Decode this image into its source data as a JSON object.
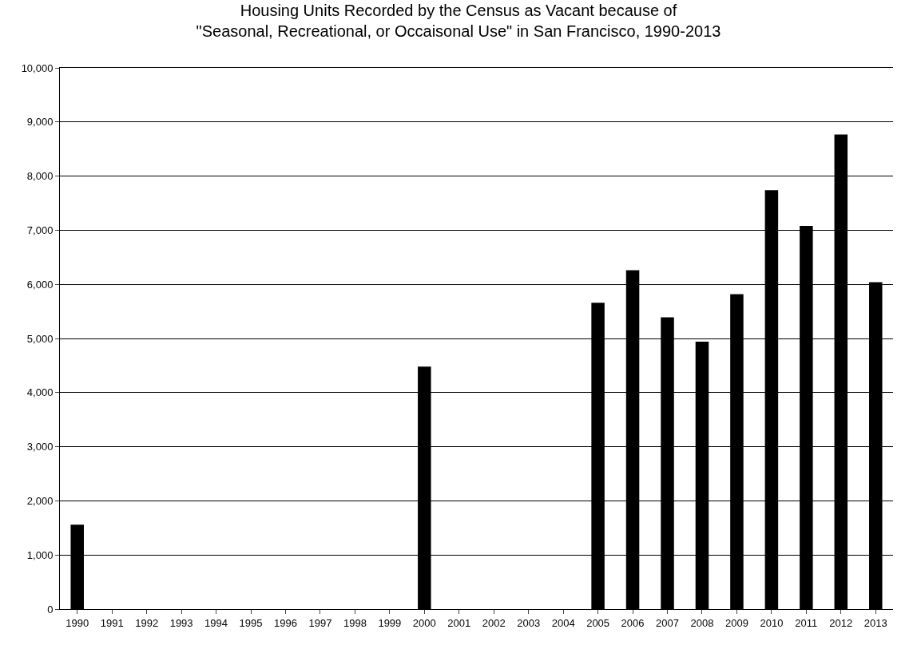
{
  "chart_data": {
    "type": "bar",
    "title": "Housing Units Recorded by the Census as Vacant because of\n\"Seasonal, Recreational, or Occaisonal Use\" in San Francisco, 1990-2013",
    "categories": [
      "1990",
      "1991",
      "1992",
      "1993",
      "1994",
      "1995",
      "1996",
      "1997",
      "1998",
      "1999",
      "2000",
      "2001",
      "2002",
      "2003",
      "2004",
      "2005",
      "2006",
      "2007",
      "2008",
      "2009",
      "2010",
      "2011",
      "2012",
      "2013"
    ],
    "values": [
      1560,
      null,
      null,
      null,
      null,
      null,
      null,
      null,
      null,
      null,
      4480,
      null,
      null,
      null,
      null,
      5660,
      6260,
      5390,
      4940,
      5820,
      7740,
      7080,
      8770,
      6040
    ],
    "color": "#000000",
    "ylim": [
      0,
      10000
    ],
    "yticks": [
      {
        "value": 0,
        "label": "0"
      },
      {
        "value": 1000,
        "label": "1,000"
      },
      {
        "value": 2000,
        "label": "2,000"
      },
      {
        "value": 3000,
        "label": "3,000"
      },
      {
        "value": 4000,
        "label": "4,000"
      },
      {
        "value": 5000,
        "label": "5,000"
      },
      {
        "value": 6000,
        "label": "6,000"
      },
      {
        "value": 7000,
        "label": "7,000"
      },
      {
        "value": 8000,
        "label": "8,000"
      },
      {
        "value": 9000,
        "label": "9,000"
      },
      {
        "value": 10000,
        "label": "10,000"
      }
    ],
    "grid": "y"
  }
}
